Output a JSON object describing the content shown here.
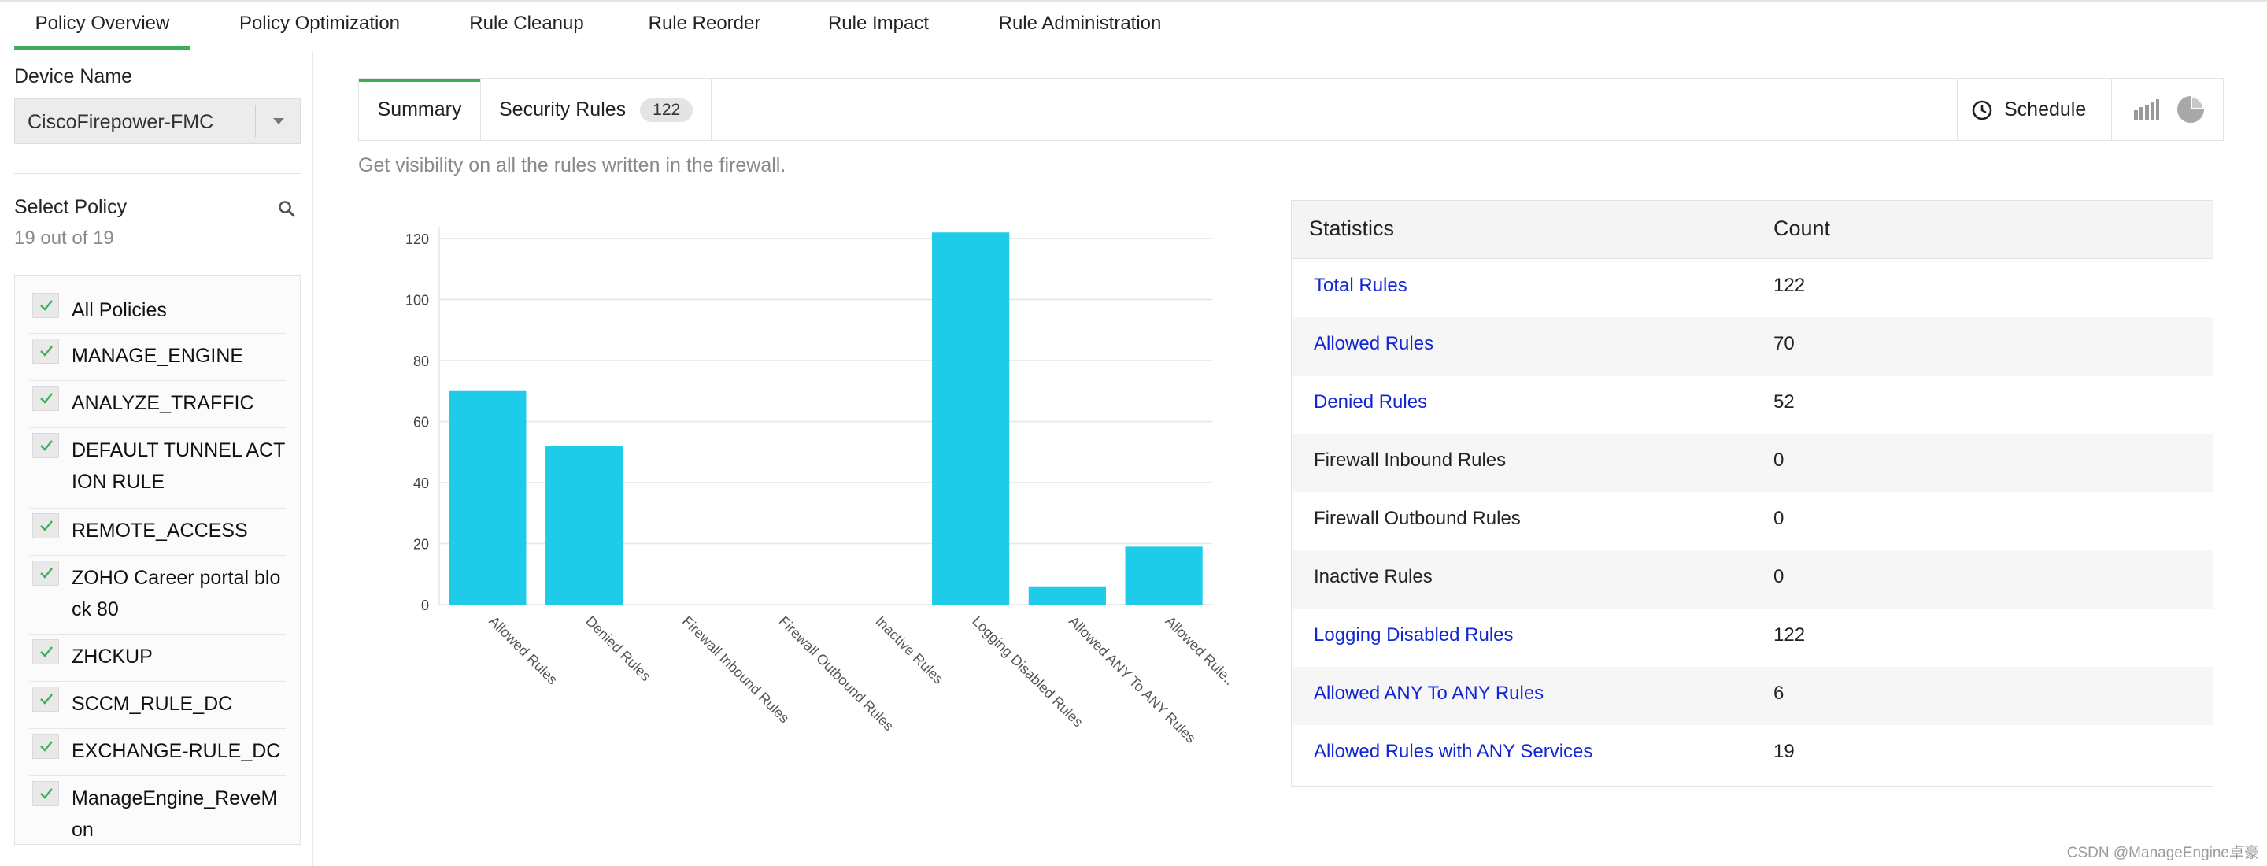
{
  "top_nav": {
    "tabs": [
      "Policy Overview",
      "Policy Optimization",
      "Rule Cleanup",
      "Rule Reorder",
      "Rule Impact",
      "Rule Administration"
    ]
  },
  "sidebar": {
    "device_label": "Device Name",
    "device_value": "CiscoFirepower-FMC",
    "select_policy_label": "Select Policy",
    "policy_count_text": "19 out of 19",
    "policies": [
      "All Policies",
      "MANAGE_ENGINE",
      "ANALYZE_TRAFFIC",
      "DEFAULT TUNNEL ACTION RULE",
      "REMOTE_ACCESS",
      "ZOHO Career portal block 80",
      "ZHCKUP",
      "SCCM_RULE_DC",
      "EXCHANGE-RULE_DC",
      "ManageEngine_ReveMon"
    ]
  },
  "main": {
    "tabs": {
      "summary": "Summary",
      "security_rules": "Security Rules",
      "security_rules_count": "122"
    },
    "schedule_label": "Schedule",
    "description": "Get visibility on all the rules written in the firewall."
  },
  "chart_data": {
    "type": "bar",
    "categories": [
      "Allowed Rules",
      "Denied Rules",
      "Firewall Inbound Rules",
      "Firewall Outbound Rules",
      "Inactive Rules",
      "Logging Disabled Rules",
      "Allowed ANY To ANY Rules",
      "Allowed Rule.."
    ],
    "values": [
      70,
      52,
      0,
      0,
      0,
      122,
      6,
      19
    ],
    "ylim": [
      0,
      120
    ],
    "yticks": [
      0,
      20,
      40,
      60,
      80,
      100,
      120
    ],
    "grid": true,
    "bar_color": "#1ecbe8"
  },
  "stats": {
    "headers": [
      "Statistics",
      "Count"
    ],
    "rows": [
      {
        "name": "Total Rules",
        "count": "122",
        "link": true
      },
      {
        "name": "Allowed Rules",
        "count": "70",
        "link": true
      },
      {
        "name": "Denied Rules",
        "count": "52",
        "link": true
      },
      {
        "name": "Firewall Inbound Rules",
        "count": "0",
        "link": false
      },
      {
        "name": "Firewall Outbound Rules",
        "count": "0",
        "link": false
      },
      {
        "name": "Inactive Rules",
        "count": "0",
        "link": false
      },
      {
        "name": "Logging Disabled Rules",
        "count": "122",
        "link": true
      },
      {
        "name": "Allowed ANY To ANY Rules",
        "count": "6",
        "link": true
      },
      {
        "name": "Allowed Rules with ANY Services",
        "count": "19",
        "link": true
      }
    ]
  },
  "watermark": "CSDN @ManageEngine卓豪",
  "colors": {
    "accent": "#3dae5b",
    "link": "#1226d6",
    "bar": "#1ecbe8"
  }
}
